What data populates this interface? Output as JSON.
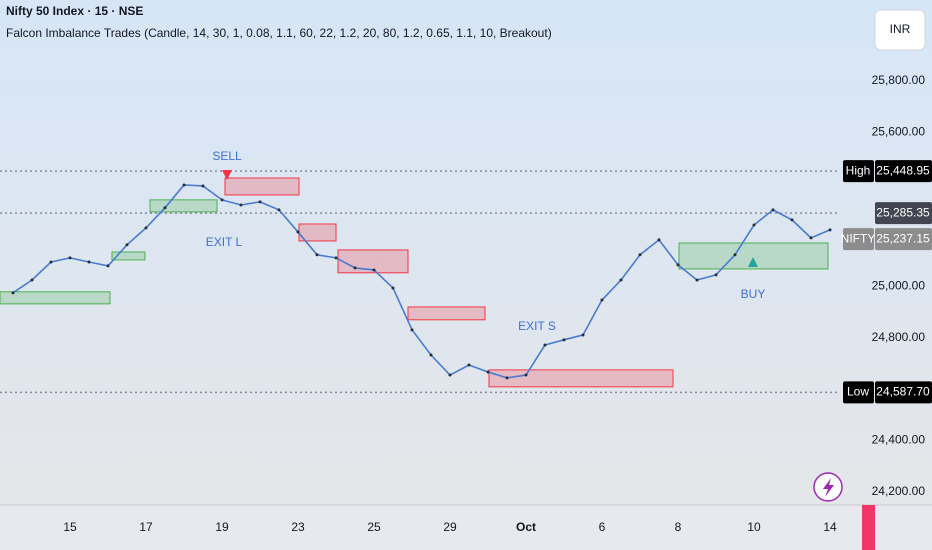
{
  "chart_data": {
    "type": "line",
    "title": "Nifty 50 Index · 15 · NSE",
    "subtitle": "Falcon Imbalance Trades (Candle, 14, 30, 1, 0.08, 1.1, 60, 22, 1.2, 20, 80, 1.2, 0.65, 1.1, 10, Breakout)",
    "currency": "INR",
    "categories": [
      null,
      null,
      null,
      "15",
      null,
      null,
      null,
      "17",
      null,
      null,
      null,
      "19",
      null,
      null,
      null,
      "23",
      null,
      null,
      null,
      "25",
      null,
      null,
      null,
      "29",
      null,
      null,
      null,
      "Oct",
      null,
      null,
      null,
      "6",
      null,
      null,
      null,
      "8",
      null,
      null,
      null,
      "10",
      null,
      null,
      null,
      "14"
    ],
    "values": [
      24975,
      25025,
      25095,
      25111,
      25095,
      25080,
      25162,
      25228,
      25306,
      25395,
      25391,
      25337,
      25317,
      25329,
      25298,
      25212,
      25123,
      25111,
      25072,
      25064,
      24994,
      24831,
      24733,
      24655,
      24694,
      24667,
      24644,
      24655,
      24772,
      24792,
      24811,
      24947,
      25025,
      25123,
      25181,
      25084,
      25025,
      25045,
      25123,
      25239,
      25298,
      25259,
      25189,
      25220
    ],
    "color": "#4a7bd0",
    "ylim": [
      24149,
      26115
    ],
    "yticks": [
      {
        "value": 25800,
        "label": "25,800.00"
      },
      {
        "value": 25600,
        "label": "25,600.00"
      },
      {
        "value": 25000,
        "label": "25,000.00"
      },
      {
        "value": 24800,
        "label": "24,800.00"
      },
      {
        "value": 24400,
        "label": "24,400.00"
      },
      {
        "value": 24200,
        "label": "24,200.00"
      }
    ],
    "grid": false,
    "zones": [
      {
        "top": 24979,
        "bottom": 24932,
        "color": "#4caf50"
      },
      {
        "top": 25134,
        "bottom": 25103,
        "color": "#4caf50"
      },
      {
        "top": 25337,
        "bottom": 25290,
        "color": "#4caf50"
      },
      {
        "top": 25422,
        "bottom": 25356,
        "color": "#f23645"
      },
      {
        "top": 25243,
        "bottom": 25177,
        "color": "#f23645"
      },
      {
        "top": 25142,
        "bottom": 25053,
        "color": "#f23645"
      },
      {
        "top": 24920,
        "bottom": 24870,
        "color": "#f23645"
      },
      {
        "top": 24675,
        "bottom": 24609,
        "color": "#f23645"
      },
      {
        "top": 25169,
        "bottom": 25068,
        "color": "#4caf50"
      }
    ],
    "price_lines": [
      {
        "name": "High",
        "value": 25448.95,
        "label": "25,448.95",
        "color": "#000000"
      },
      {
        "value": 25285.35,
        "label": "25,285.35",
        "color": "#434651"
      },
      {
        "name": "NIFTY",
        "value": 25237.15,
        "label": "25,237.15",
        "color": "#8c8c8c"
      },
      {
        "name": "Low",
        "value": 24587.7,
        "label": "24,587.70",
        "color": "#000000"
      }
    ],
    "annotations": [
      "SELL",
      "EXIT L",
      "EXIT S",
      "BUY"
    ]
  }
}
